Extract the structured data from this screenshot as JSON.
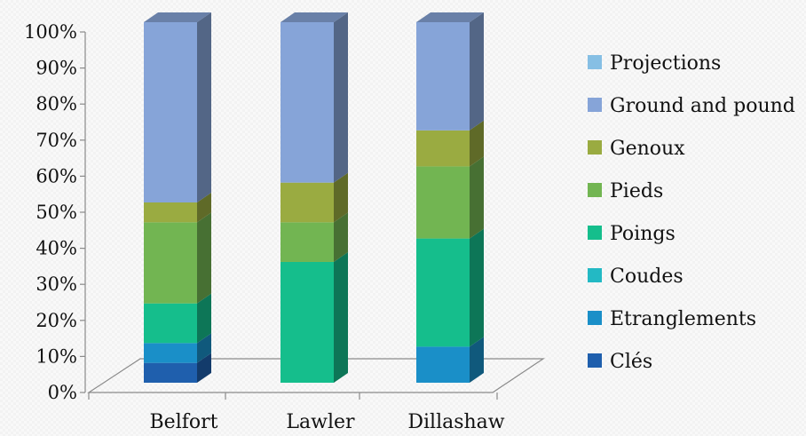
{
  "chart_data": {
    "type": "bar",
    "stacked": true,
    "percent_stacked": true,
    "three_d": true,
    "categories": [
      "Belfort",
      "Lawler",
      "Dillashaw"
    ],
    "ylim": [
      0,
      100
    ],
    "yticks": [
      "0%",
      "10%",
      "20%",
      "30%",
      "40%",
      "50%",
      "60%",
      "70%",
      "80%",
      "90%",
      "100%"
    ],
    "legend_position": "right",
    "series": [
      {
        "name": "Clés",
        "color": "#1f5fad",
        "values": [
          5.5,
          0,
          0
        ]
      },
      {
        "name": "Etranglements",
        "color": "#1a8fc8",
        "values": [
          5.5,
          0,
          10
        ]
      },
      {
        "name": "Coudes",
        "color": "#23b9c4",
        "values": [
          0,
          0,
          0
        ]
      },
      {
        "name": "Poings",
        "color": "#15be8c",
        "values": [
          11,
          33.5,
          30
        ]
      },
      {
        "name": "Pieds",
        "color": "#72b552",
        "values": [
          22.5,
          11,
          20
        ]
      },
      {
        "name": "Genoux",
        "color": "#9aab41",
        "values": [
          5.5,
          11,
          10
        ]
      },
      {
        "name": "Ground and pound",
        "color": "#86a4d8",
        "values": [
          50,
          44.5,
          30
        ]
      },
      {
        "name": "Projections",
        "color": "#86bfe4",
        "values": [
          0,
          0,
          0
        ]
      }
    ]
  }
}
